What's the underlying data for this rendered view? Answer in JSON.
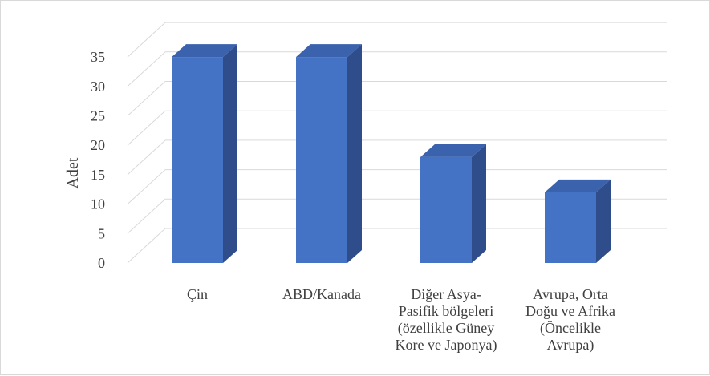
{
  "chart_data": {
    "type": "bar",
    "style": "3d-column",
    "categories": [
      [
        "Çin"
      ],
      [
        "ABD/Kanada"
      ],
      [
        "Diğer Asya-",
        "Pasifik bölgeleri",
        "(özellikle Güney",
        "Kore ve Japonya)"
      ],
      [
        "Avrupa, Orta",
        "Doğu ve Afrika",
        "(Öncelikle",
        "Avrupa)"
      ]
    ],
    "values": [
      35,
      35,
      18,
      12
    ],
    "ylabel": "Adet",
    "ylim": [
      0,
      35
    ],
    "yticks": [
      "0",
      "5",
      "10",
      "15",
      "20",
      "25",
      "30",
      "35"
    ],
    "grid": true,
    "legend": "none",
    "colors": {
      "bar_front": "#4472c4",
      "bar_side": "#2f4d8a",
      "bar_top": "#3a62ad",
      "gridline": "#d9d9d9",
      "text": "#404040"
    }
  }
}
